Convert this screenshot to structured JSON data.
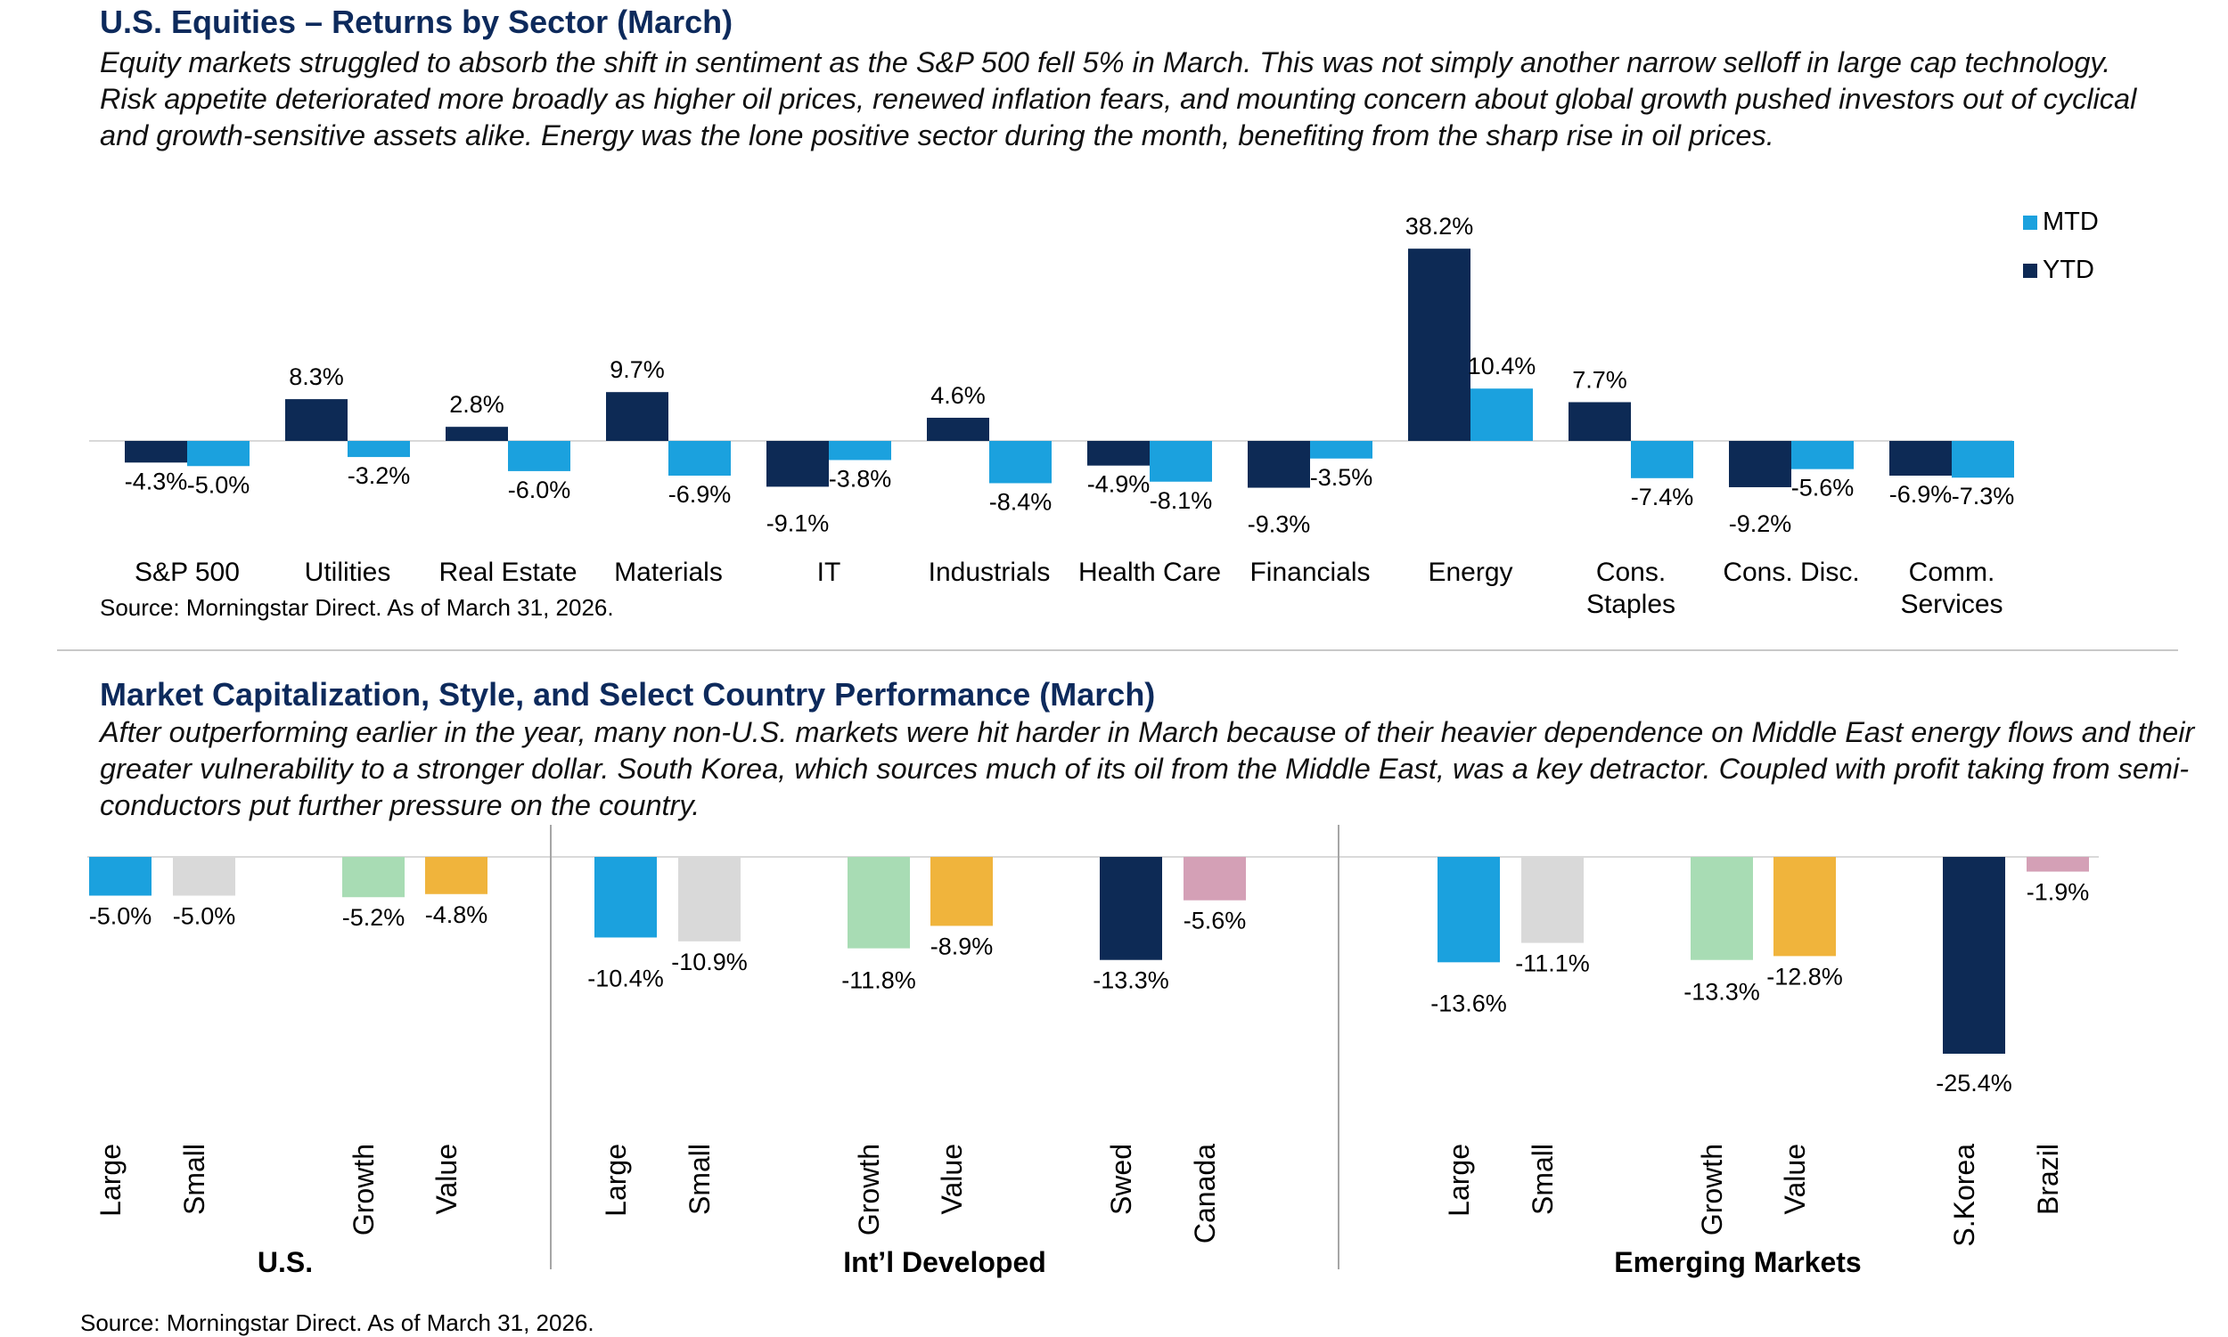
{
  "section1": {
    "title": "U.S. Equities – Returns by Sector (March)",
    "text": "Equity markets struggled to absorb the shift in sentiment as the S&P 500 fell 5% in March. This was not simply another narrow selloff in large cap technology. Risk appetite deteriorated more broadly as higher oil prices, renewed inflation fears, and mounting concern about global growth pushed investors out of cyclical and growth-sensitive assets alike. Energy was the lone positive sector during the month, benefiting from the sharp rise in oil prices.",
    "source": "Source: Morningstar Direct. As of March 31, 2026."
  },
  "section2": {
    "title": "Market Capitalization, Style, and Select Country Performance (March)",
    "text": "After outperforming earlier in the year, many non-U.S. markets were hit harder in March because of their heavier dependence on Middle East energy flows and their greater vulnerability to a stronger dollar. South Korea, which sources much of its oil from the Middle East, was a key detractor. Coupled with profit taking from semi-conductors put further pressure on the country.",
    "source": "Source: Morningstar Direct. As of March 31, 2026."
  },
  "colors": {
    "ytd": "#0d2a55",
    "mtd": "#1ba1de",
    "grey": "#d9d9d9",
    "green": "#a8dcb4",
    "orange": "#f0b43c",
    "pink": "#d4a0b6",
    "title": "#0d2a5c"
  },
  "chart_data": [
    {
      "type": "bar",
      "title": "U.S. Equities – Returns by Sector (March)",
      "categories": [
        "S&P 500",
        "Utilities",
        "Real Estate",
        "Materials",
        "IT",
        "Industrials",
        "Health Care",
        "Financials",
        "Energy",
        "Cons. Staples",
        "Cons. Disc.",
        "Comm. Services"
      ],
      "category_lines": [
        [
          "S&P 500"
        ],
        [
          "Utilities"
        ],
        [
          "Real Estate"
        ],
        [
          "Materials"
        ],
        [
          "IT"
        ],
        [
          "Industrials"
        ],
        [
          "Health Care"
        ],
        [
          "Financials"
        ],
        [
          "Energy"
        ],
        [
          "Cons.",
          "Staples"
        ],
        [
          "Cons. Disc."
        ],
        [
          "Comm.",
          "Services"
        ]
      ],
      "series": [
        {
          "name": "YTD",
          "color_key": "ytd",
          "values": [
            -4.3,
            8.3,
            2.8,
            9.7,
            -9.1,
            4.6,
            -4.9,
            -9.3,
            38.2,
            7.7,
            -9.2,
            -6.9
          ]
        },
        {
          "name": "MTD",
          "color_key": "mtd",
          "values": [
            -5.0,
            -3.2,
            -6.0,
            -6.9,
            -3.8,
            -8.4,
            -8.1,
            -3.5,
            10.4,
            -7.4,
            -5.6,
            -7.3
          ]
        }
      ],
      "legend": [
        "MTD",
        "YTD"
      ],
      "legend_position": "top-right",
      "ylim": [
        -15,
        40
      ],
      "grid": false
    },
    {
      "type": "bar",
      "title": "Market Capitalization, Style, and Select Country Performance (March)",
      "groups": [
        {
          "name": "U.S.",
          "items": [
            {
              "label": "Large",
              "value": -5.0,
              "color_key": "mtd"
            },
            {
              "label": "Small",
              "value": -5.0,
              "color_key": "grey"
            },
            {
              "label": "Growth",
              "value": -5.2,
              "color_key": "green"
            },
            {
              "label": "Value",
              "value": -4.8,
              "color_key": "orange"
            }
          ]
        },
        {
          "name": "Int’l Developed",
          "items": [
            {
              "label": "Large",
              "value": -10.4,
              "color_key": "mtd"
            },
            {
              "label": "Small",
              "value": -10.9,
              "color_key": "grey"
            },
            {
              "label": "Growth",
              "value": -11.8,
              "color_key": "green"
            },
            {
              "label": "Value",
              "value": -8.9,
              "color_key": "orange"
            },
            {
              "label": "Swed",
              "value": -13.3,
              "color_key": "ytd"
            },
            {
              "label": "Canada",
              "value": -5.6,
              "color_key": "pink"
            }
          ]
        },
        {
          "name": "Emerging Markets",
          "items": [
            {
              "label": "Large",
              "value": -13.6,
              "color_key": "mtd"
            },
            {
              "label": "Small",
              "value": -11.1,
              "color_key": "grey"
            },
            {
              "label": "Growth",
              "value": -13.3,
              "color_key": "green"
            },
            {
              "label": "Value",
              "value": -12.8,
              "color_key": "orange"
            },
            {
              "label": "S.Korea",
              "value": -25.4,
              "color_key": "ytd"
            },
            {
              "label": "Brazil",
              "value": -1.9,
              "color_key": "pink"
            }
          ]
        }
      ],
      "ylim": [
        -30,
        0
      ],
      "grid": false
    }
  ]
}
